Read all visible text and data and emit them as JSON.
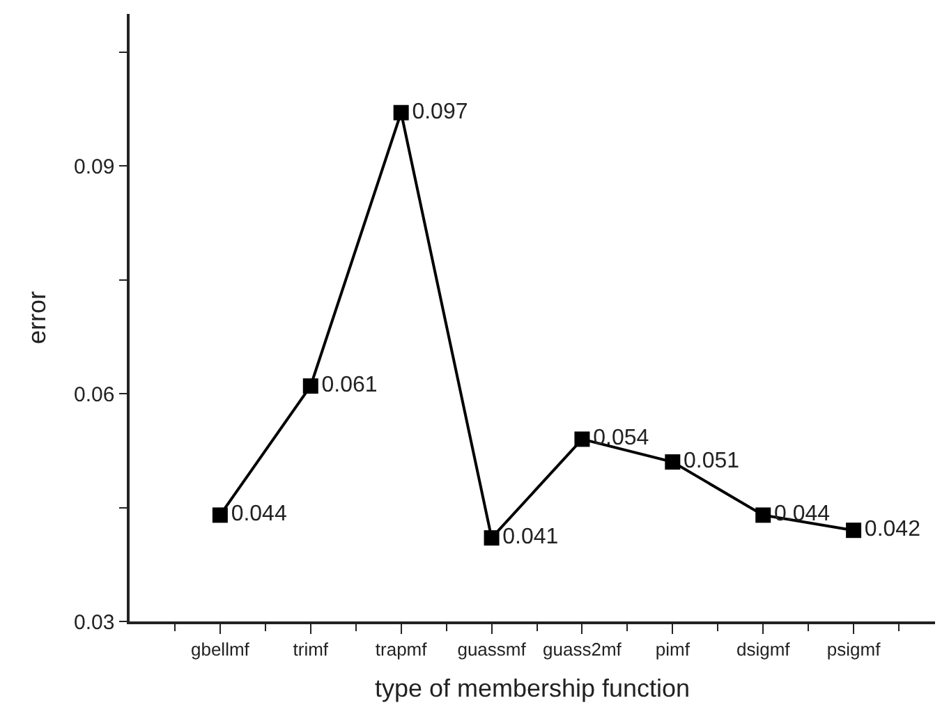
{
  "chart_data": {
    "type": "line",
    "xlabel": "type of membership function",
    "ylabel": "error",
    "categories": [
      "gbellmf",
      "trimf",
      "trapmf",
      "guassmf",
      "guass2mf",
      "pimf",
      "dsigmf",
      "psigmf"
    ],
    "series": [
      {
        "color": "#000000",
        "values": [
          0.044,
          0.061,
          0.097,
          0.041,
          0.054,
          0.051,
          0.044,
          0.042
        ]
      }
    ],
    "ylim": [
      0.03,
      0.11
    ],
    "yticks": [
      0.03,
      {
        "value": 0.045,
        "label": null
      },
      0.06,
      {
        "value": 0.075,
        "label": null
      },
      0.09,
      {
        "value": 0.105,
        "label": null
      }
    ],
    "data_labels": true,
    "marker": "square",
    "line_style": "solid",
    "legend": false
  }
}
